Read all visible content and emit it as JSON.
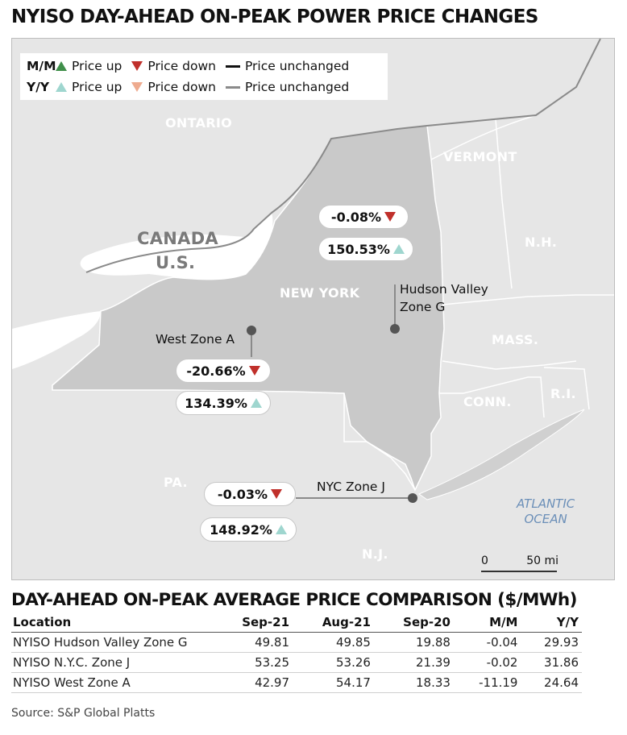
{
  "title": "NYISO DAY-AHEAD ON-PEAK POWER PRICE CHANGES",
  "colors": {
    "mm_up": "#3f8f4a",
    "mm_down": "#c0302b",
    "mm_unchanged": "#111111",
    "yy_up": "#9fd6cf",
    "yy_down": "#eeab8f",
    "yy_unchanged": "#8a8a8a",
    "land": "#e6e6e6",
    "new_york": "#c9c9c9",
    "water": "#ffffff",
    "ocean_text": "#6b8fb8"
  },
  "legend": {
    "mm": {
      "label": "M/M",
      "up": "Price up",
      "down": "Price down",
      "unchanged": "Price unchanged"
    },
    "yy": {
      "label": "Y/Y",
      "up": "Price up",
      "down": "Price down",
      "unchanged": "Price unchanged"
    }
  },
  "map": {
    "labels": {
      "ontario": "ONTARIO",
      "vermont": "VERMONT",
      "canada": "CANADA",
      "us": "U.S.",
      "nh": "N.H.",
      "new_york": "NEW YORK",
      "mass": "MASS.",
      "conn": "CONN.",
      "ri": "R.I.",
      "pa": "PA.",
      "nj": "N.J."
    },
    "ocean_line1": "ATLANTIC",
    "ocean_line2": "OCEAN",
    "scale": {
      "start": "0",
      "end": "50 mi"
    }
  },
  "zones": {
    "hudson": {
      "line1": "Hudson Valley",
      "line2": "Zone G",
      "mm": "-0.08%",
      "mm_dir": "down",
      "yy": "150.53%",
      "yy_dir": "up"
    },
    "west": {
      "label": "West Zone A",
      "mm": "-20.66%",
      "mm_dir": "down",
      "yy": "134.39%",
      "yy_dir": "up"
    },
    "nyc": {
      "label": "NYC Zone J",
      "mm": "-0.03%",
      "mm_dir": "down",
      "yy": "148.92%",
      "yy_dir": "up"
    }
  },
  "table": {
    "title": "DAY-AHEAD ON-PEAK AVERAGE PRICE COMPARISON ($/MWh)",
    "headers": [
      "Location",
      "Sep-21",
      "Aug-21",
      "Sep-20",
      "M/M",
      "Y/Y"
    ],
    "rows": [
      [
        "NYISO Hudson Valley Zone G",
        "49.81",
        "49.85",
        "19.88",
        "-0.04",
        "29.93"
      ],
      [
        "NYISO N.Y.C. Zone J",
        "53.25",
        "53.26",
        "21.39",
        "-0.02",
        "31.86"
      ],
      [
        "NYISO West Zone A",
        "42.97",
        "54.17",
        "18.33",
        "-11.19",
        "24.64"
      ]
    ]
  },
  "source": "Source: S&P Global Platts"
}
